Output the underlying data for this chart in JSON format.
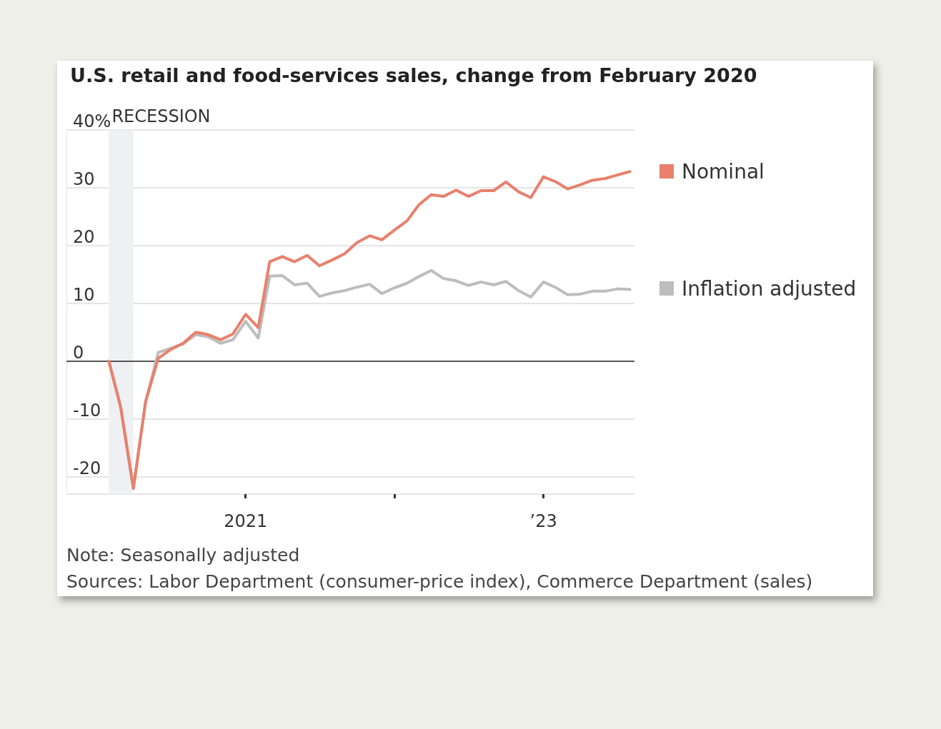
{
  "chart_data": {
    "type": "line",
    "title": "U.S. retail and food-services sales, change from February 2020",
    "x": [
      "2020-02",
      "2020-03",
      "2020-04",
      "2020-05",
      "2020-06",
      "2020-07",
      "2020-08",
      "2020-09",
      "2020-10",
      "2020-11",
      "2020-12",
      "2021-01",
      "2021-02",
      "2021-03",
      "2021-04",
      "2021-05",
      "2021-06",
      "2021-07",
      "2021-08",
      "2021-09",
      "2021-10",
      "2021-11",
      "2021-12",
      "2022-01",
      "2022-02",
      "2022-03",
      "2022-04",
      "2022-05",
      "2022-06",
      "2022-07",
      "2022-08",
      "2022-09",
      "2022-10",
      "2022-11",
      "2022-12",
      "2023-01",
      "2023-02",
      "2023-03",
      "2023-04",
      "2023-05",
      "2023-06",
      "2023-07",
      "2023-08"
    ],
    "series": [
      {
        "name": "Nominal",
        "color": "#e8806d",
        "values": [
          0,
          -8,
          -22,
          -7,
          0.5,
          2,
          3.1,
          5,
          4.6,
          3.7,
          4.7,
          8.1,
          5.8,
          17.2,
          18.1,
          17.2,
          18.3,
          16.5,
          17.5,
          18.6,
          20.5,
          21.7,
          21,
          22.7,
          24.3,
          27,
          28.8,
          28.5,
          29.6,
          28.5,
          29.5,
          29.5,
          31,
          29.3,
          28.3,
          31.9,
          31,
          29.8,
          30.5,
          31.3,
          31.6,
          32.2,
          32.8
        ]
      },
      {
        "name": "Inflation adjusted",
        "color": "#bdbdbd",
        "values": [
          0,
          -8,
          -22,
          -7,
          1.5,
          2.2,
          3,
          4.6,
          4.2,
          3.1,
          3.7,
          6.9,
          4,
          14.7,
          14.8,
          13.2,
          13.5,
          11.2,
          11.8,
          12.2,
          12.8,
          13.3,
          11.7,
          12.7,
          13.5,
          14.6,
          15.7,
          14.3,
          13.9,
          13.1,
          13.7,
          13.2,
          13.8,
          12.2,
          11.1,
          13.7,
          12.7,
          11.5,
          11.6,
          12.1,
          12.1,
          12.5,
          12.4
        ]
      }
    ],
    "xlim": [
      "2019-10-20",
      "2023-08-12"
    ],
    "xticks": [
      {
        "value": "2021-01",
        "label": "2021"
      },
      {
        "value": "2022-01",
        "label": null
      },
      {
        "value": "2023-01",
        "label": "’23"
      }
    ],
    "ylim": [
      -23,
      40
    ],
    "yticks": [
      -20,
      -10,
      0,
      10,
      20,
      30,
      {
        "value": 40,
        "label": "40%"
      }
    ],
    "grid": "y",
    "legend": "right",
    "marker": "none",
    "bands": [
      {
        "axis": "x",
        "from": "2020-02",
        "to": "2020-04",
        "label": "RECESSION",
        "color": "#eef0f3"
      }
    ],
    "ref_lines": [
      {
        "axis": "y",
        "value": 0,
        "color": "#555555"
      }
    ],
    "annotations": [
      "Note: Seasonally adjusted",
      "Sources: Labor Department (consumer-price index), Commerce Department (sales)"
    ]
  }
}
